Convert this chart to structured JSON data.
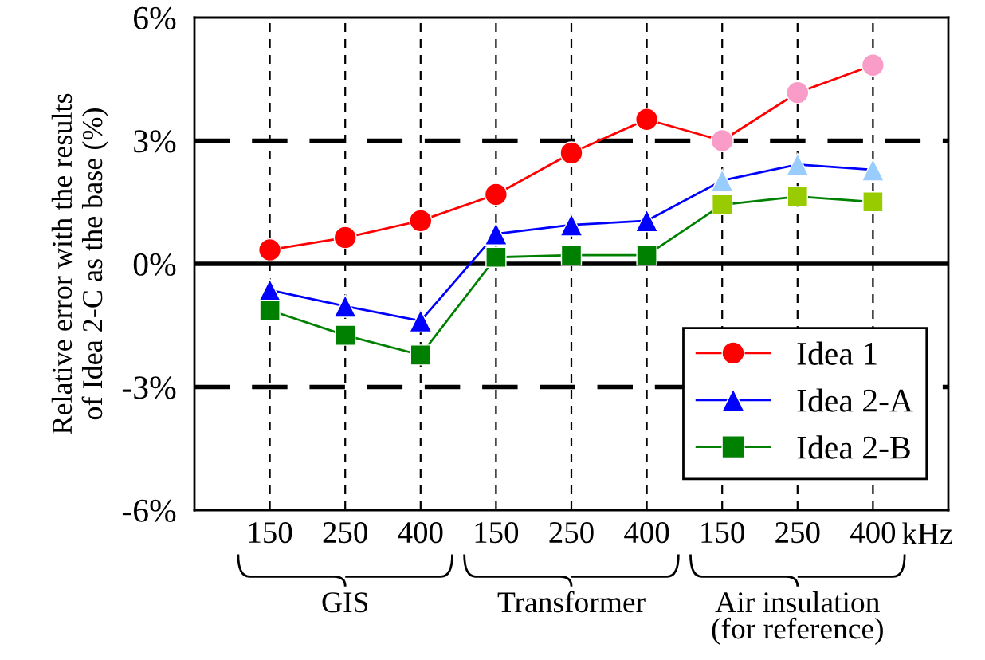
{
  "chart_data": {
    "type": "line",
    "ylabel": "Relative error with the results\nof Idea 2-C as the base (%)",
    "xlabel": "kHz",
    "categories": [
      "150",
      "250",
      "400",
      "150",
      "250",
      "400",
      "150",
      "250",
      "400"
    ],
    "series": [
      {
        "name": "Idea 1",
        "color": "#ff0000",
        "marker": "circle",
        "values": [
          0.34,
          0.64,
          1.05,
          1.69,
          2.7,
          3.52,
          3.0,
          4.17,
          4.84
        ],
        "colors": [
          "#ff0000",
          "#ff0000",
          "#ff0000",
          "#ff0000",
          "#ff0000",
          "#ff0000",
          "#f99cc8",
          "#f99cc8",
          "#f99cc8"
        ]
      },
      {
        "name": "Idea 2-A",
        "color": "#0000ff",
        "marker": "triangle",
        "values": [
          -0.64,
          -1.03,
          -1.39,
          0.73,
          0.95,
          1.05,
          2.03,
          2.42,
          2.29
        ],
        "colors": [
          "#0000ff",
          "#0000ff",
          "#0000ff",
          "#0000ff",
          "#0000ff",
          "#0000ff",
          "#99ccff",
          "#99ccff",
          "#99ccff"
        ]
      },
      {
        "name": "Idea 2-B",
        "color": "#008000",
        "marker": "square",
        "values": [
          -1.13,
          -1.74,
          -2.22,
          0.16,
          0.21,
          0.21,
          1.44,
          1.64,
          1.51
        ],
        "colors": [
          "#008000",
          "#008000",
          "#008000",
          "#008000",
          "#008000",
          "#008000",
          "#99cc00",
          "#99cc00",
          "#99cc00"
        ]
      }
    ],
    "ylim": [
      -6,
      6
    ],
    "yticks": [
      {
        "value": 6,
        "label": "6%"
      },
      {
        "value": 3,
        "label": "3%"
      },
      {
        "value": 0,
        "label": "0%"
      },
      {
        "value": -3,
        "label": "-3%"
      },
      {
        "value": -6,
        "label": "-6%"
      }
    ],
    "ref_lines": [
      {
        "axis": "y",
        "value": 3,
        "line_style": "dashed",
        "color": "#000000"
      },
      {
        "axis": "y",
        "value": 0,
        "line_style": "solid",
        "color": "#000000"
      },
      {
        "axis": "y",
        "value": -3,
        "line_style": "dashed",
        "color": "#000000"
      }
    ],
    "grid": "x",
    "legend": "bottom right",
    "annotations": [
      "GIS",
      "Transformer",
      "Air insulation\n(for reference)"
    ]
  }
}
